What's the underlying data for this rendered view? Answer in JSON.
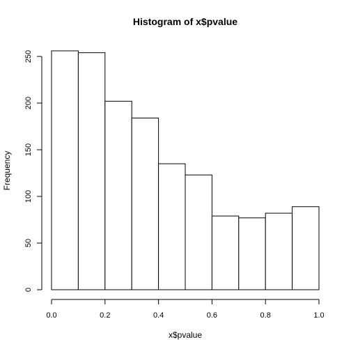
{
  "chart_data": {
    "type": "bar",
    "title": "Histogram of x$pvalue",
    "xlabel": "x$pvalue",
    "ylabel": "Frequency",
    "bins": [
      {
        "start": 0.0,
        "end": 0.1,
        "count": 256
      },
      {
        "start": 0.1,
        "end": 0.2,
        "count": 254
      },
      {
        "start": 0.2,
        "end": 0.3,
        "count": 202
      },
      {
        "start": 0.3,
        "end": 0.4,
        "count": 184
      },
      {
        "start": 0.4,
        "end": 0.5,
        "count": 135
      },
      {
        "start": 0.5,
        "end": 0.6,
        "count": 123
      },
      {
        "start": 0.6,
        "end": 0.7,
        "count": 79
      },
      {
        "start": 0.7,
        "end": 0.8,
        "count": 77
      },
      {
        "start": 0.8,
        "end": 0.9,
        "count": 82
      },
      {
        "start": 0.9,
        "end": 1.0,
        "count": 89
      }
    ],
    "xlim": [
      0,
      1
    ],
    "ylim": [
      0,
      256
    ],
    "x_ticks": [
      0.0,
      0.2,
      0.4,
      0.6,
      0.8,
      1.0
    ],
    "x_tick_labels": [
      "0.0",
      "0.2",
      "0.4",
      "0.6",
      "0.8",
      "1.0"
    ],
    "y_ticks": [
      0,
      50,
      100,
      150,
      200,
      250
    ],
    "y_tick_labels": [
      "0",
      "50",
      "100",
      "150",
      "200",
      "250"
    ],
    "bar_fill": "#ffffff",
    "bar_stroke": "#000000",
    "grid": false,
    "legend": "none"
  }
}
